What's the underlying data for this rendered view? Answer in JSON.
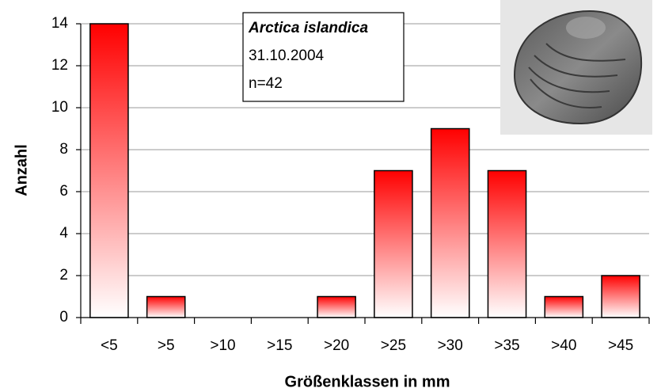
{
  "chart_data": {
    "type": "bar",
    "categories": [
      "<5",
      ">5",
      ">10",
      ">15",
      ">20",
      ">25",
      ">30",
      ">35",
      ">40",
      ">45"
    ],
    "values": [
      14,
      1,
      0,
      0,
      1,
      7,
      9,
      7,
      1,
      2
    ],
    "color": "#ff0000",
    "ylim": [
      0,
      14
    ],
    "yticks": [
      0,
      2,
      4,
      6,
      8,
      10,
      12,
      14
    ],
    "grid": true,
    "x_label": "Größenklassen in mm",
    "y_label": "Anzahl",
    "annotation": [
      "Arctica islandica",
      "31.10.2004",
      "n=42"
    ]
  }
}
